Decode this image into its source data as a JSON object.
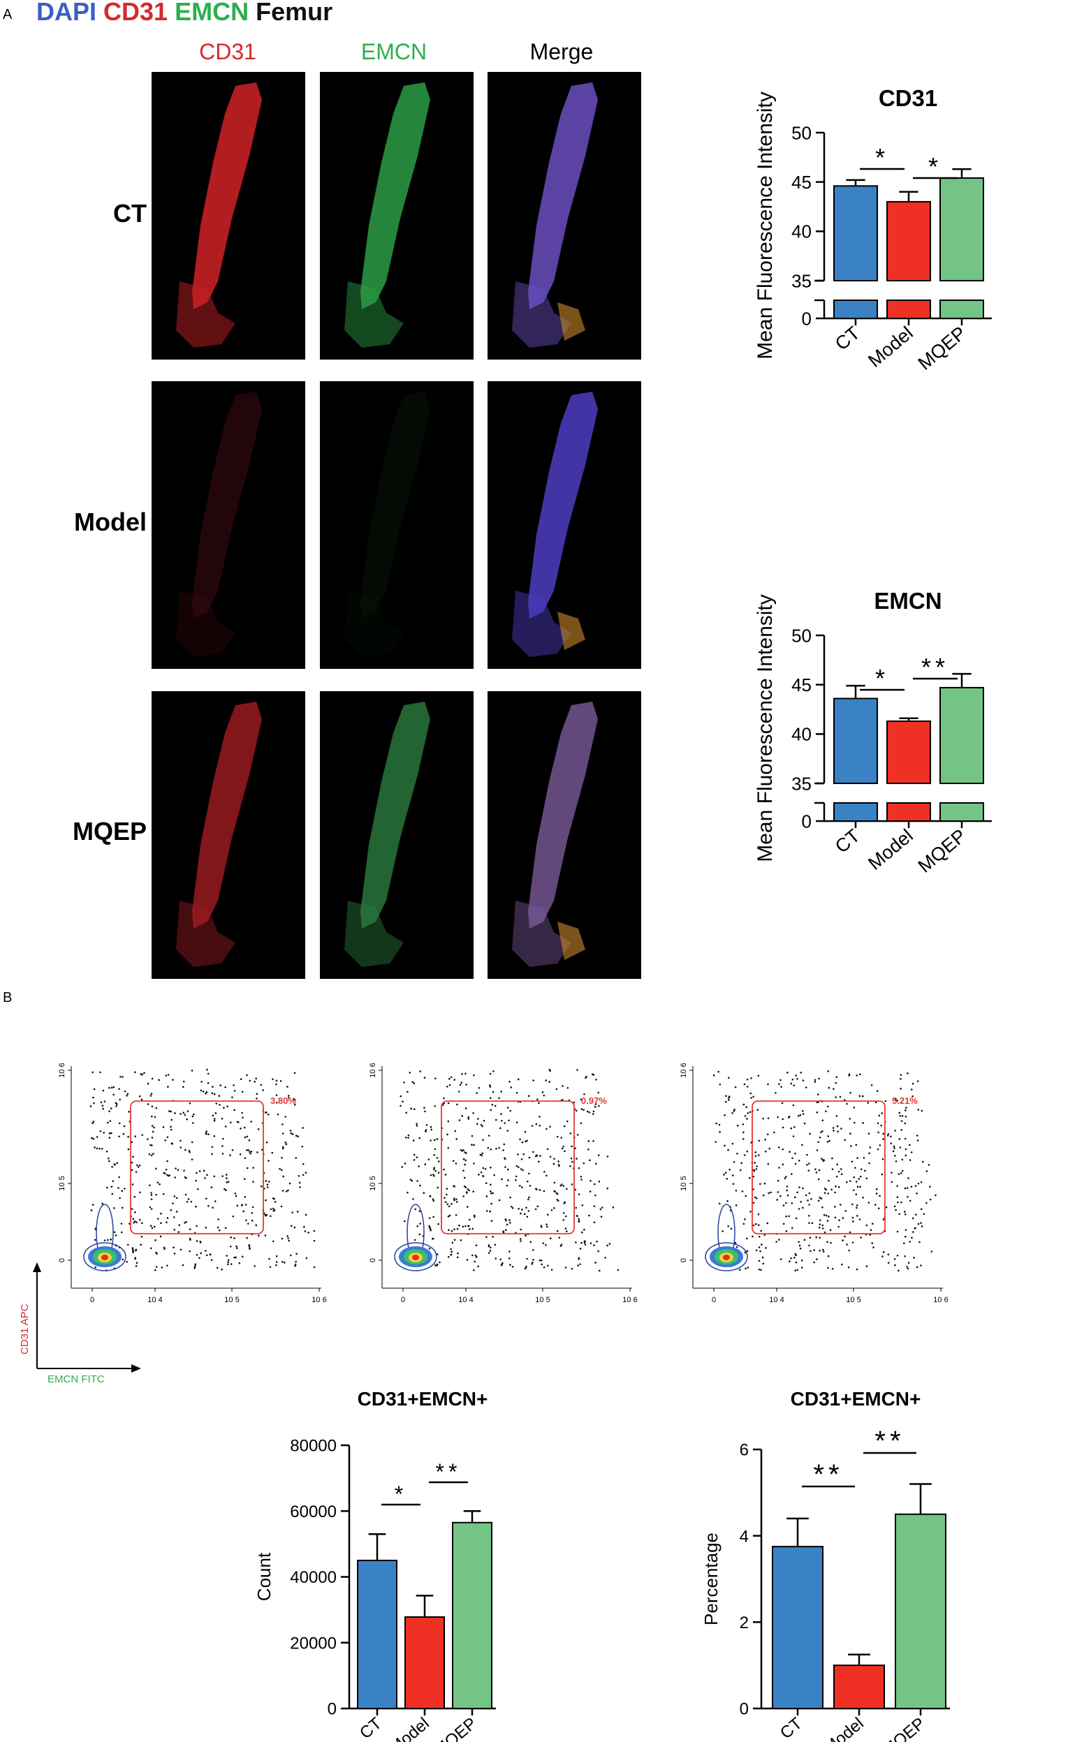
{
  "panel_a": {
    "letter": "A",
    "legend": [
      {
        "text": "DAPI",
        "color": "#3a5fc4"
      },
      {
        "text": "CD31",
        "color": "#d42a2f"
      },
      {
        "text": "EMCN",
        "color": "#2fae4e"
      },
      {
        "text": "Femur",
        "color": "#111111"
      }
    ],
    "column_heads": [
      {
        "text": "CD31",
        "color": "#d42a2f"
      },
      {
        "text": "EMCN",
        "color": "#2fae4e"
      },
      {
        "text": "Merge",
        "color": "#000000"
      }
    ],
    "row_labels": [
      "CT",
      "Model",
      "MQEP"
    ]
  },
  "panel_b": {
    "letter": "B",
    "flow_gates": [
      "3.80%",
      "0.97%",
      "5.21%"
    ],
    "flow_axes": {
      "y_label": "CD31 APC",
      "x_label": "EMCN FITC",
      "x_ticks": [
        "0",
        "10 4",
        "10 5",
        "10 6"
      ],
      "y_ticks": [
        "0",
        "10 5",
        "10 6"
      ]
    }
  },
  "colors": {
    "CT": "#3a82c4",
    "Model": "#ee3124",
    "MQEP": "#74c485"
  },
  "chart_data": [
    {
      "id": "cd31-mfi",
      "type": "bar",
      "title": "CD31",
      "ylabel": "Mean Fluorescence Intensity",
      "categories": [
        "CT",
        "Model",
        "MQEP"
      ],
      "values": [
        44.6,
        43.0,
        45.4
      ],
      "errors": [
        0.6,
        1.0,
        0.9
      ],
      "y_broken_axis": {
        "lower_ticks": [
          "0"
        ],
        "upper_range": [
          35,
          50
        ]
      },
      "yticks": [
        "35",
        "40",
        "45",
        "50"
      ],
      "significance": [
        {
          "from": "CT",
          "to": "Model",
          "label": "*"
        },
        {
          "from": "Model",
          "to": "MQEP",
          "label": "*"
        }
      ]
    },
    {
      "id": "emcn-mfi",
      "type": "bar",
      "title": "EMCN",
      "ylabel": "Mean Fluorescence Intensity",
      "categories": [
        "CT",
        "Model",
        "MQEP"
      ],
      "values": [
        43.6,
        41.3,
        44.7
      ],
      "errors": [
        1.3,
        0.3,
        1.4
      ],
      "y_broken_axis": {
        "lower_ticks": [
          "0"
        ],
        "upper_range": [
          35,
          50
        ]
      },
      "yticks": [
        "35",
        "40",
        "45",
        "50"
      ],
      "significance": [
        {
          "from": "CT",
          "to": "Model",
          "label": "*"
        },
        {
          "from": "Model",
          "to": "MQEP",
          "label": "**"
        }
      ]
    },
    {
      "id": "count",
      "type": "bar",
      "title": "CD31+EMCN+",
      "ylabel": "Count",
      "categories": [
        "CT",
        "Model",
        "MQEP"
      ],
      "values": [
        45000,
        27800,
        56500
      ],
      "errors": [
        8000,
        6500,
        3500
      ],
      "ylim": [
        0,
        80000
      ],
      "yticks": [
        "0",
        "20000",
        "40000",
        "60000",
        "80000"
      ],
      "significance": [
        {
          "from": "CT",
          "to": "Model",
          "label": "*"
        },
        {
          "from": "Model",
          "to": "MQEP",
          "label": "**"
        }
      ]
    },
    {
      "id": "percentage",
      "type": "bar",
      "title": "CD31+EMCN+",
      "ylabel": "Percentage",
      "categories": [
        "CT",
        "Model",
        "MQEP"
      ],
      "values": [
        3.75,
        1.0,
        4.5
      ],
      "errors": [
        0.65,
        0.25,
        0.7
      ],
      "ylim": [
        0,
        6
      ],
      "yticks": [
        "0",
        "2",
        "4",
        "6"
      ],
      "significance": [
        {
          "from": "CT",
          "to": "Model",
          "label": "**"
        },
        {
          "from": "Model",
          "to": "MQEP",
          "label": "**"
        }
      ]
    }
  ]
}
